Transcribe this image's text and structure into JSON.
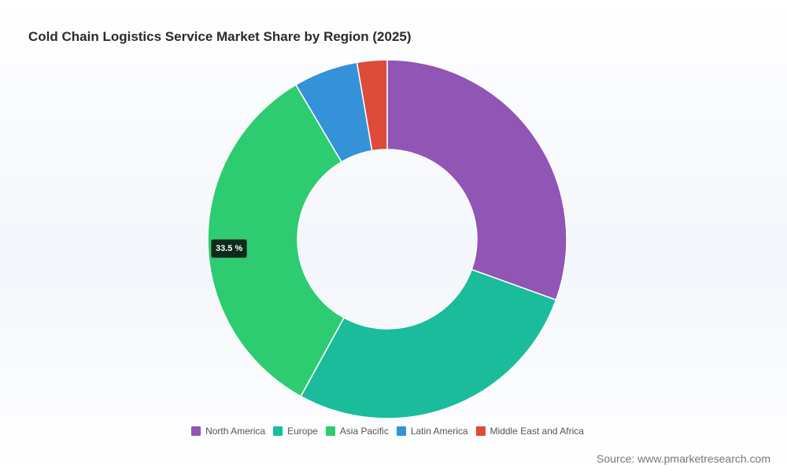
{
  "chart_data": {
    "type": "pie",
    "title": "Cold Chain Logistics Service Market Share by Region (2025)",
    "categories": [
      "North America",
      "Europe",
      "Asia Pacific",
      "Latin America",
      "Middle East and Africa"
    ],
    "values": [
      30.5,
      27.5,
      33.5,
      5.8,
      2.7
    ],
    "colors": [
      "#9155b5",
      "#1abc9c",
      "#2ecc71",
      "#3592d8",
      "#dd4b39"
    ],
    "donut": true,
    "legend_position": "bottom",
    "tooltip": {
      "category": "Asia Pacific",
      "label": "33.5 %"
    }
  },
  "source": "Source: www.pmarketresearch.com"
}
